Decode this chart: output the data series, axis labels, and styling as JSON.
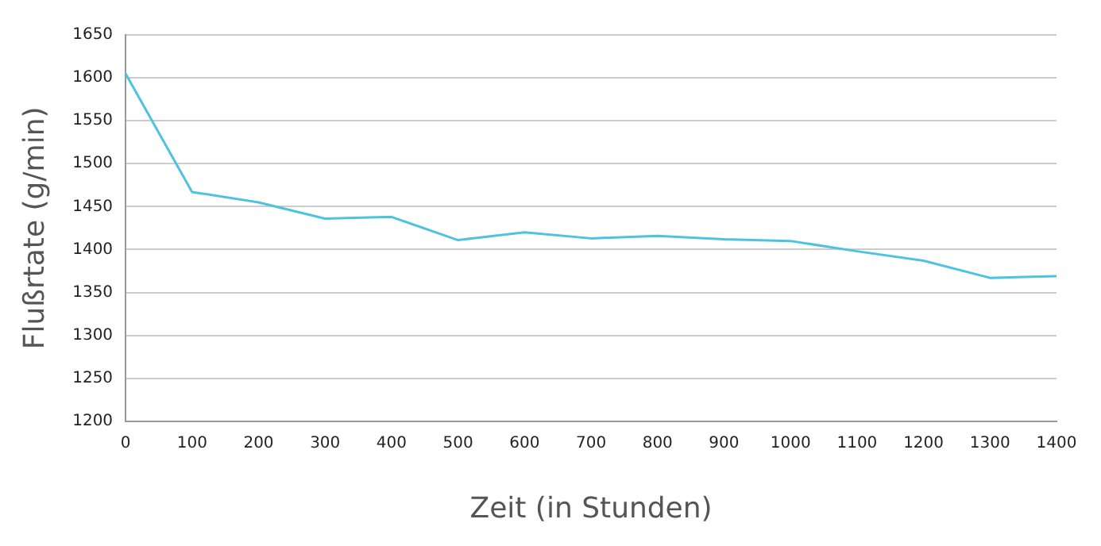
{
  "chart_data": {
    "type": "line",
    "xlabel": "Zeit (in Stunden)",
    "ylabel": "Flußrtate (g/min)",
    "categories": [
      "0",
      "100",
      "200",
      "300",
      "400",
      "500",
      "600",
      "700",
      "800",
      "900",
      "1000",
      "1100",
      "1200",
      "1300",
      "1400"
    ],
    "series": [
      {
        "color": "#4ec3e0",
        "values": [
          1605,
          1467,
          1455,
          1436,
          1438,
          1411,
          1420,
          1413,
          1416,
          1412,
          1410,
          1398,
          1387,
          1367,
          1369
        ]
      }
    ],
    "ylim": [
      1200,
      1650
    ],
    "yticks": [
      1200,
      1250,
      1300,
      1350,
      1400,
      1450,
      1500,
      1550,
      1600,
      1650
    ],
    "grid": "y",
    "legend": false,
    "marker": "none",
    "line_style": "solid"
  }
}
